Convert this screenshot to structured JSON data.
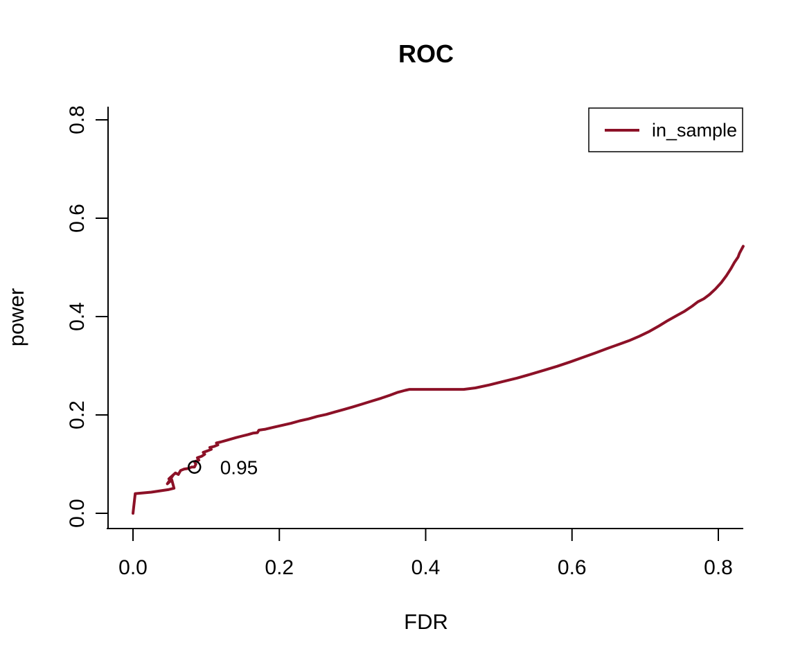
{
  "chart_data": {
    "type": "line",
    "title": "ROC",
    "xlabel": "FDR",
    "ylabel": "power",
    "x_ticks": [
      "0.0",
      "0.2",
      "0.4",
      "0.6",
      "0.8"
    ],
    "y_ticks": [
      "0.0",
      "0.2",
      "0.4",
      "0.6",
      "0.8"
    ],
    "xlim": [
      0.0,
      0.84
    ],
    "ylim": [
      0.0,
      0.8
    ],
    "grid": false,
    "legend": {
      "position": "topright",
      "entries": [
        {
          "label": "in_sample",
          "color": "#8C1127"
        }
      ]
    },
    "series": [
      {
        "name": "in_sample",
        "color": "#8C1127",
        "line_width": 4,
        "points": [
          [
            0.0,
            0.0
          ],
          [
            0.003,
            0.04
          ],
          [
            0.025,
            0.043
          ],
          [
            0.048,
            0.048
          ],
          [
            0.056,
            0.051
          ],
          [
            0.053,
            0.068
          ],
          [
            0.047,
            0.06
          ],
          [
            0.055,
            0.078
          ],
          [
            0.049,
            0.07
          ],
          [
            0.058,
            0.082
          ],
          [
            0.062,
            0.079
          ],
          [
            0.065,
            0.087
          ],
          [
            0.07,
            0.09
          ],
          [
            0.075,
            0.091
          ],
          [
            0.08,
            0.094
          ],
          [
            0.084,
            0.094
          ],
          [
            0.086,
            0.1
          ],
          [
            0.084,
            0.105
          ],
          [
            0.09,
            0.108
          ],
          [
            0.088,
            0.113
          ],
          [
            0.094,
            0.116
          ],
          [
            0.098,
            0.12
          ],
          [
            0.096,
            0.124
          ],
          [
            0.102,
            0.127
          ],
          [
            0.107,
            0.13
          ],
          [
            0.105,
            0.134
          ],
          [
            0.111,
            0.136
          ],
          [
            0.116,
            0.139
          ],
          [
            0.114,
            0.143
          ],
          [
            0.12,
            0.145
          ],
          [
            0.127,
            0.148
          ],
          [
            0.134,
            0.151
          ],
          [
            0.141,
            0.154
          ],
          [
            0.149,
            0.157
          ],
          [
            0.157,
            0.16
          ],
          [
            0.164,
            0.163
          ],
          [
            0.17,
            0.164
          ],
          [
            0.172,
            0.169
          ],
          [
            0.181,
            0.171
          ],
          [
            0.192,
            0.175
          ],
          [
            0.204,
            0.179
          ],
          [
            0.216,
            0.183
          ],
          [
            0.228,
            0.188
          ],
          [
            0.24,
            0.192
          ],
          [
            0.252,
            0.197
          ],
          [
            0.264,
            0.201
          ],
          [
            0.276,
            0.206
          ],
          [
            0.288,
            0.211
          ],
          [
            0.3,
            0.216
          ],
          [
            0.313,
            0.222
          ],
          [
            0.326,
            0.228
          ],
          [
            0.339,
            0.234
          ],
          [
            0.351,
            0.24
          ],
          [
            0.362,
            0.246
          ],
          [
            0.372,
            0.25
          ],
          [
            0.378,
            0.252
          ],
          [
            0.452,
            0.252
          ],
          [
            0.468,
            0.255
          ],
          [
            0.487,
            0.261
          ],
          [
            0.506,
            0.268
          ],
          [
            0.525,
            0.275
          ],
          [
            0.544,
            0.283
          ],
          [
            0.562,
            0.291
          ],
          [
            0.58,
            0.299
          ],
          [
            0.598,
            0.308
          ],
          [
            0.615,
            0.317
          ],
          [
            0.632,
            0.326
          ],
          [
            0.648,
            0.335
          ],
          [
            0.663,
            0.343
          ],
          [
            0.678,
            0.351
          ],
          [
            0.692,
            0.36
          ],
          [
            0.706,
            0.37
          ],
          [
            0.719,
            0.381
          ],
          [
            0.731,
            0.392
          ],
          [
            0.743,
            0.402
          ],
          [
            0.754,
            0.411
          ],
          [
            0.764,
            0.421
          ],
          [
            0.772,
            0.43
          ],
          [
            0.78,
            0.436
          ],
          [
            0.788,
            0.445
          ],
          [
            0.796,
            0.456
          ],
          [
            0.804,
            0.469
          ],
          [
            0.811,
            0.483
          ],
          [
            0.817,
            0.497
          ],
          [
            0.822,
            0.51
          ],
          [
            0.827,
            0.521
          ],
          [
            0.829,
            0.529
          ],
          [
            0.834,
            0.543
          ]
        ]
      }
    ],
    "annotation": {
      "x": 0.084,
      "y": 0.094,
      "label": "0.95",
      "marker": "open-circle",
      "marker_color": "#000000",
      "label_color": "#8C1127"
    }
  },
  "colors": {
    "curve": "#8C1127",
    "axis": "#000000",
    "text": "#000000",
    "background": "#FFFFFF"
  }
}
